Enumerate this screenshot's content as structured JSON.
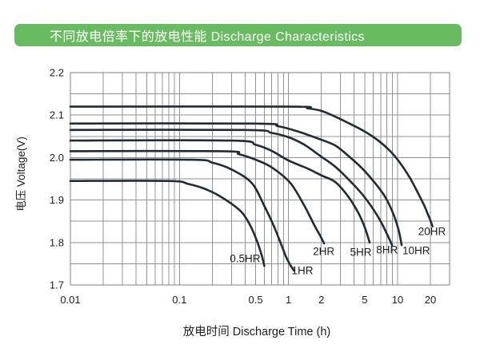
{
  "header": {
    "title": "不同放电倍率下的放电性能 Discharge Characteristics",
    "bg_color": "#68bb60",
    "text_color": "#ffffff"
  },
  "chart_data": {
    "type": "line",
    "title": "不同放电倍率下的放电性能 Discharge Characteristics",
    "x_axis": {
      "label": "放电时间  Discharge Time (h)",
      "scale": "log",
      "range": [
        0.01,
        30
      ],
      "tick_labels": [
        "0.01",
        "0.1",
        "0.5",
        "1",
        "2",
        "5",
        "10",
        "20"
      ]
    },
    "y_axis": {
      "label": "电压  Voltage(V)",
      "scale": "linear",
      "range": [
        1.7,
        2.2
      ],
      "tick_labels": [
        "1.7",
        "1.8",
        "1.9",
        "2.0",
        "2.1",
        "2.2"
      ],
      "minor_step": 0.05
    },
    "grid": true,
    "colors": {
      "curve": "#222a34",
      "grid": "#8f9296",
      "frame": "#7e8186",
      "text": "#1d1d1b"
    },
    "series": [
      {
        "name": "0.5HR",
        "label_at": {
          "t": 0.4,
          "v": 1.762
        },
        "points": [
          [
            0.01,
            1.945
          ],
          [
            0.08,
            1.945
          ],
          [
            0.12,
            1.938
          ],
          [
            0.18,
            1.924
          ],
          [
            0.26,
            1.902
          ],
          [
            0.37,
            1.872
          ],
          [
            0.45,
            1.838
          ],
          [
            0.52,
            1.8
          ],
          [
            0.57,
            1.768
          ],
          [
            0.6,
            1.745
          ]
        ]
      },
      {
        "name": "1HR",
        "label_at": {
          "t": 1.34,
          "v": 1.734
        },
        "points": [
          [
            0.01,
            1.995
          ],
          [
            0.13,
            1.995
          ],
          [
            0.2,
            1.988
          ],
          [
            0.3,
            1.972
          ],
          [
            0.46,
            1.94
          ],
          [
            0.6,
            1.886
          ],
          [
            0.73,
            1.84
          ],
          [
            0.85,
            1.798
          ],
          [
            0.95,
            1.766
          ],
          [
            1.05,
            1.745
          ],
          [
            1.12,
            1.734
          ]
        ]
      },
      {
        "name": "2HR",
        "label_at": {
          "t": 2.1,
          "v": 1.779
        },
        "points": [
          [
            0.01,
            2.015
          ],
          [
            0.25,
            2.015
          ],
          [
            0.35,
            2.008
          ],
          [
            0.5,
            1.995
          ],
          [
            0.7,
            1.977
          ],
          [
            1.04,
            1.94
          ],
          [
            1.4,
            1.886
          ],
          [
            1.73,
            1.84
          ],
          [
            1.95,
            1.816
          ],
          [
            2.12,
            1.798
          ]
        ]
      },
      {
        "name": "5HR",
        "label_at": {
          "t": 4.6,
          "v": 1.777
        },
        "points": [
          [
            0.01,
            2.04
          ],
          [
            0.3,
            2.04
          ],
          [
            0.5,
            2.03
          ],
          [
            0.7,
            2.016
          ],
          [
            1.0,
            1.993
          ],
          [
            1.5,
            1.974
          ],
          [
            2.0,
            1.958
          ],
          [
            2.7,
            1.942
          ],
          [
            3.6,
            1.905
          ],
          [
            4.4,
            1.868
          ],
          [
            5.0,
            1.836
          ],
          [
            5.55,
            1.8
          ]
        ]
      },
      {
        "name": "8HR",
        "label_at": {
          "t": 8.0,
          "v": 1.783
        },
        "points": [
          [
            0.01,
            2.065
          ],
          [
            0.4,
            2.065
          ],
          [
            0.7,
            2.058
          ],
          [
            1.0,
            2.048
          ],
          [
            1.4,
            2.03
          ],
          [
            2.0,
            2.002
          ],
          [
            2.7,
            1.978
          ],
          [
            3.6,
            1.947
          ],
          [
            4.8,
            1.912
          ],
          [
            6.0,
            1.878
          ],
          [
            7.0,
            1.85
          ],
          [
            8.0,
            1.82
          ],
          [
            8.9,
            1.794
          ]
        ]
      },
      {
        "name": "10HR",
        "label_at": {
          "t": 14.8,
          "v": 1.781
        },
        "points": [
          [
            0.01,
            2.08
          ],
          [
            0.5,
            2.08
          ],
          [
            0.8,
            2.074
          ],
          [
            1.2,
            2.062
          ],
          [
            2.0,
            2.042
          ],
          [
            2.7,
            2.028
          ],
          [
            3.5,
            2.005
          ],
          [
            4.8,
            1.973
          ],
          [
            6.4,
            1.936
          ],
          [
            7.5,
            1.912
          ],
          [
            8.5,
            1.886
          ],
          [
            9.5,
            1.856
          ],
          [
            10.3,
            1.826
          ],
          [
            10.9,
            1.794
          ]
        ]
      },
      {
        "name": "20HR",
        "label_at": {
          "t": 20.7,
          "v": 1.826
        },
        "points": [
          [
            0.01,
            2.12
          ],
          [
            1.0,
            2.12
          ],
          [
            1.5,
            2.116
          ],
          [
            2.0,
            2.11
          ],
          [
            2.7,
            2.096
          ],
          [
            3.5,
            2.082
          ],
          [
            4.8,
            2.064
          ],
          [
            6.5,
            2.042
          ],
          [
            8.5,
            2.016
          ],
          [
            10.5,
            1.988
          ],
          [
            13.0,
            1.952
          ],
          [
            15.0,
            1.922
          ],
          [
            17.5,
            1.888
          ],
          [
            19.0,
            1.866
          ],
          [
            20.0,
            1.852
          ],
          [
            20.9,
            1.838
          ]
        ]
      }
    ]
  }
}
